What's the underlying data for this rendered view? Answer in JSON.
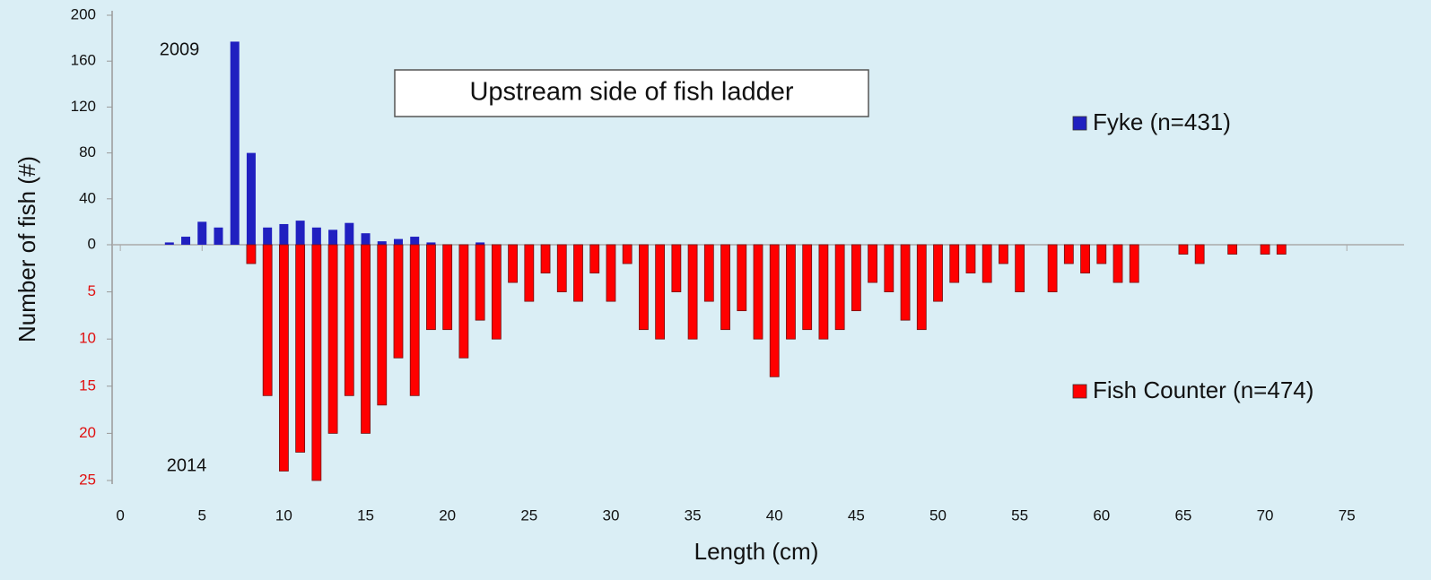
{
  "chart_data": {
    "type": "bar",
    "title": "Upstream side of fish ladder",
    "x_label": "Length (cm)",
    "y_label": "Number of fish (#)",
    "annotations": [
      "2009",
      "2014"
    ],
    "xlim": [
      -0.5,
      78.5
    ],
    "xticks": [
      0,
      5,
      10,
      15,
      20,
      25,
      30,
      35,
      40,
      45,
      50,
      55,
      60,
      65,
      70,
      75
    ],
    "ylim": [
      0,
      200
    ],
    "yticks": [
      0,
      40,
      80,
      120,
      160,
      200
    ],
    "y2lim": [
      0,
      25
    ],
    "y2ticks": [
      5,
      10,
      15,
      20,
      25
    ],
    "y2_direction": "down",
    "y2_tick_color": "#e01010",
    "grid": false,
    "series": [
      {
        "name": "Fyke (n=431)",
        "color": "#2020c0",
        "x": [
          3,
          4,
          5,
          6,
          7,
          8,
          9,
          10,
          11,
          12,
          13,
          14,
          15,
          16,
          17,
          18,
          19,
          22
        ],
        "values": [
          2,
          7,
          20,
          15,
          177,
          80,
          15,
          18,
          21,
          15,
          13,
          19,
          10,
          3,
          5,
          7,
          2,
          2
        ]
      },
      {
        "name": "Fish Counter (n=474)",
        "color": "#ff0000",
        "axis": "y2",
        "x": [
          8,
          9,
          10,
          11,
          12,
          13,
          14,
          15,
          16,
          17,
          18,
          19,
          20,
          21,
          22,
          23,
          24,
          25,
          26,
          27,
          28,
          29,
          30,
          31,
          32,
          33,
          34,
          35,
          36,
          37,
          38,
          39,
          40,
          41,
          42,
          43,
          44,
          45,
          46,
          47,
          48,
          49,
          50,
          51,
          52,
          53,
          54,
          55,
          57,
          58,
          59,
          60,
          61,
          62,
          65,
          66,
          68,
          70,
          71
        ],
        "values": [
          2,
          16,
          24,
          22,
          25,
          20,
          16,
          20,
          17,
          12,
          16,
          9,
          9,
          12,
          8,
          10,
          4,
          6,
          3,
          5,
          6,
          3,
          6,
          2,
          9,
          10,
          5,
          10,
          6,
          9,
          7,
          10,
          14,
          10,
          9,
          10,
          9,
          7,
          4,
          5,
          8,
          9,
          6,
          4,
          3,
          4,
          2,
          5,
          5,
          2,
          3,
          2,
          4,
          4,
          1,
          2,
          1,
          1,
          1
        ]
      }
    ]
  }
}
